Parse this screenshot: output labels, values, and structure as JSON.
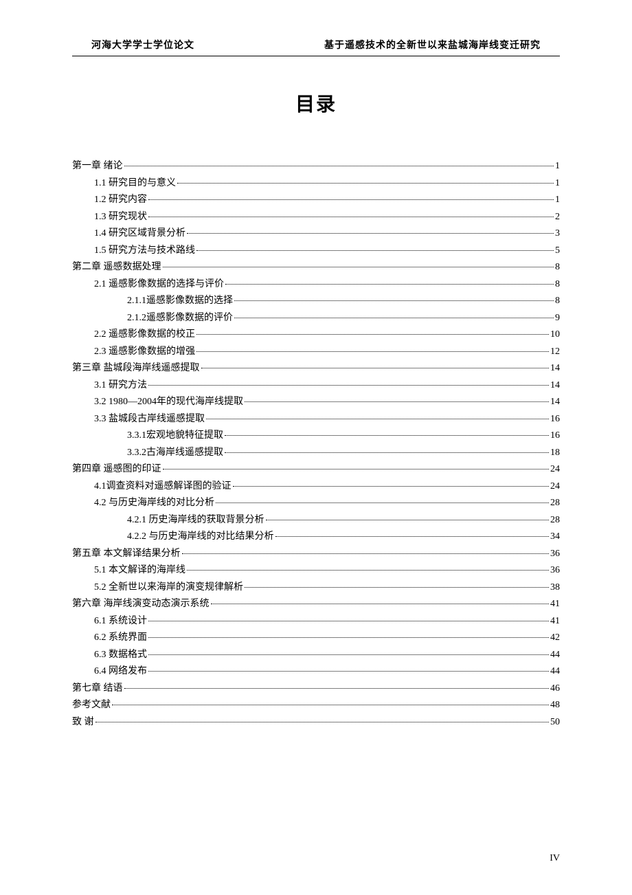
{
  "header": {
    "left": "河海大学学士学位论文",
    "right": "基于遥感技术的全新世以来盐城海岸线变迁研究"
  },
  "title": "目录",
  "page_number": "IV",
  "toc": [
    {
      "level": 0,
      "label": "第一章  绪论",
      "page": "1"
    },
    {
      "level": 1,
      "label": "1.1 研究目的与意义",
      "page": "1"
    },
    {
      "level": 1,
      "label": "1.2 研究内容",
      "page": "1"
    },
    {
      "level": 1,
      "label": "1.3 研究现状",
      "page": "2"
    },
    {
      "level": 1,
      "label": "1.4 研究区域背景分析",
      "page": "3"
    },
    {
      "level": 1,
      "label": "1.5 研究方法与技术路线",
      "page": "5"
    },
    {
      "level": 0,
      "label": "第二章  遥感数据处理",
      "page": "8"
    },
    {
      "level": 1,
      "label": "2.1 遥感影像数据的选择与评价",
      "page": "8"
    },
    {
      "level": 2,
      "label": "2.1.1遥感影像数据的选择",
      "page": "8"
    },
    {
      "level": 2,
      "label": "2.1.2遥感影像数据的评价",
      "page": "9"
    },
    {
      "level": 1,
      "label": "2.2 遥感影像数据的校正",
      "page": "10"
    },
    {
      "level": 1,
      "label": "2.3 遥感影像数据的增强",
      "page": "12"
    },
    {
      "level": 0,
      "label": "第三章  盐城段海岸线遥感提取",
      "page": "14"
    },
    {
      "level": 1,
      "label": "3.1 研究方法",
      "page": "14"
    },
    {
      "level": 1,
      "label": "3.2 1980—2004年的现代海岸线提取",
      "page": "14"
    },
    {
      "level": 1,
      "label": "3.3 盐城段古岸线遥感提取",
      "page": "16"
    },
    {
      "level": 2,
      "label": "3.3.1宏观地貌特征提取",
      "page": "16"
    },
    {
      "level": 2,
      "label": "3.3.2古海岸线遥感提取",
      "page": "18"
    },
    {
      "level": 0,
      "label": "第四章  遥感图的印证",
      "page": "24"
    },
    {
      "level": 1,
      "label": "4.1调查资料对遥感解译图的验证",
      "page": "24"
    },
    {
      "level": 1,
      "label": "4.2 与历史海岸线的对比分析",
      "page": "28"
    },
    {
      "level": 2,
      "label": "4.2.1 历史海岸线的获取背景分析",
      "page": "28"
    },
    {
      "level": 2,
      "label": "4.2.2 与历史海岸线的对比结果分析",
      "page": "34"
    },
    {
      "level": 0,
      "label": "第五章  本文解译结果分析",
      "page": "36"
    },
    {
      "level": 1,
      "label": "5.1 本文解译的海岸线",
      "page": "36"
    },
    {
      "level": 1,
      "label": "5.2 全新世以来海岸的演变规律解析",
      "page": "38"
    },
    {
      "level": 0,
      "label": "第六章  海岸线演变动态演示系统",
      "page": "41"
    },
    {
      "level": 1,
      "label": "6.1 系统设计",
      "page": "41"
    },
    {
      "level": 1,
      "label": "6.2 系统界面",
      "page": "42"
    },
    {
      "level": 1,
      "label": "6.3 数据格式",
      "page": "44"
    },
    {
      "level": 1,
      "label": "6.4 网络发布",
      "page": "44"
    },
    {
      "level": 0,
      "label": "第七章  结语",
      "page": "46"
    },
    {
      "level": 0,
      "label": "参考文献",
      "page": "48"
    },
    {
      "level": 0,
      "label": "致  谢",
      "page": "50"
    }
  ]
}
